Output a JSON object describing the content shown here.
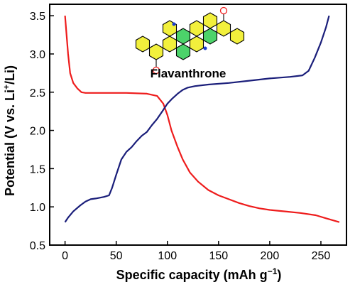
{
  "chart_data": {
    "type": "line",
    "xlabel_main": "Specific capacity (mAh g",
    "xlabel_sup": "−1",
    "xlabel_end": ")",
    "ylabel_main": "Potential (V vs. Li",
    "ylabel_sup": "+",
    "ylabel_end": "/Li)",
    "xlim": [
      -15,
      275
    ],
    "ylim": [
      0.5,
      3.65
    ],
    "xticks": [
      0,
      50,
      100,
      150,
      200,
      250
    ],
    "yticks": [
      0.5,
      1.0,
      1.5,
      2.0,
      2.5,
      3.0,
      3.5
    ],
    "ytick_labels": [
      "0.5",
      "1.0",
      "1.5",
      "2.0",
      "2.5",
      "3.0",
      "3.5"
    ],
    "annotation": "Flavanthrone",
    "series": [
      {
        "color": "#ee1c1c",
        "points": [
          [
            0,
            3.5
          ],
          [
            3,
            3.0
          ],
          [
            5,
            2.75
          ],
          [
            8,
            2.62
          ],
          [
            12,
            2.55
          ],
          [
            16,
            2.5
          ],
          [
            20,
            2.49
          ],
          [
            40,
            2.49
          ],
          [
            60,
            2.49
          ],
          [
            80,
            2.48
          ],
          [
            90,
            2.45
          ],
          [
            96,
            2.35
          ],
          [
            100,
            2.2
          ],
          [
            104,
            2.0
          ],
          [
            110,
            1.78
          ],
          [
            115,
            1.62
          ],
          [
            122,
            1.45
          ],
          [
            130,
            1.33
          ],
          [
            140,
            1.22
          ],
          [
            150,
            1.15
          ],
          [
            160,
            1.1
          ],
          [
            170,
            1.05
          ],
          [
            180,
            1.01
          ],
          [
            190,
            0.98
          ],
          [
            200,
            0.96
          ],
          [
            215,
            0.94
          ],
          [
            230,
            0.92
          ],
          [
            245,
            0.89
          ],
          [
            255,
            0.85
          ],
          [
            268,
            0.8
          ]
        ]
      },
      {
        "color": "#1a1e7a",
        "points": [
          [
            0,
            0.8
          ],
          [
            3,
            0.86
          ],
          [
            8,
            0.94
          ],
          [
            15,
            1.02
          ],
          [
            20,
            1.07
          ],
          [
            25,
            1.1
          ],
          [
            30,
            1.11
          ],
          [
            38,
            1.13
          ],
          [
            43,
            1.15
          ],
          [
            46,
            1.25
          ],
          [
            50,
            1.42
          ],
          [
            55,
            1.62
          ],
          [
            60,
            1.72
          ],
          [
            65,
            1.78
          ],
          [
            70,
            1.86
          ],
          [
            75,
            1.93
          ],
          [
            80,
            1.98
          ],
          [
            85,
            2.07
          ],
          [
            90,
            2.15
          ],
          [
            95,
            2.25
          ],
          [
            100,
            2.35
          ],
          [
            105,
            2.42
          ],
          [
            110,
            2.48
          ],
          [
            115,
            2.53
          ],
          [
            120,
            2.56
          ],
          [
            127,
            2.58
          ],
          [
            140,
            2.6
          ],
          [
            160,
            2.62
          ],
          [
            180,
            2.65
          ],
          [
            200,
            2.68
          ],
          [
            220,
            2.7
          ],
          [
            232,
            2.72
          ],
          [
            238,
            2.78
          ],
          [
            244,
            2.95
          ],
          [
            250,
            3.15
          ],
          [
            255,
            3.35
          ],
          [
            258,
            3.5
          ]
        ]
      }
    ]
  }
}
